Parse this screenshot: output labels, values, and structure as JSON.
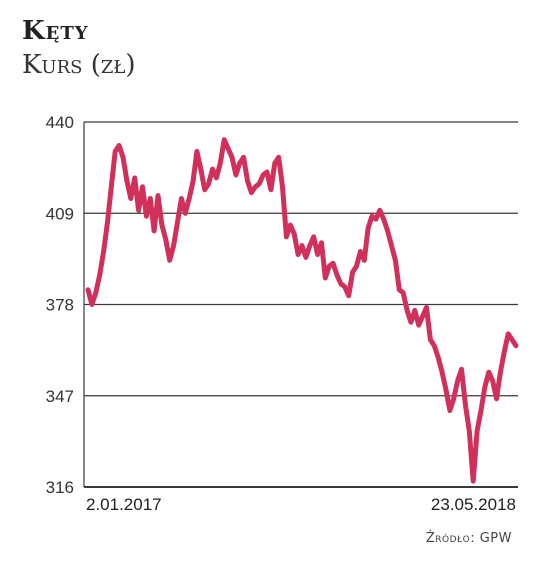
{
  "header": {
    "title": "Kęty",
    "subtitle": "Kurs (zł)"
  },
  "footer": {
    "source": "Źródło: GPW"
  },
  "colors": {
    "line": "#d1305a",
    "grid": "#3a3a3a"
  },
  "chart_data": {
    "type": "line",
    "title": "Kęty",
    "ylabel": "Kurs (zł)",
    "xlabel": "",
    "ylim": [
      316,
      440
    ],
    "yticks": [
      "316",
      "347",
      "378",
      "409",
      "440"
    ],
    "xticks": [
      "2.01.2017",
      "23.05.2018"
    ],
    "grid": "horizontal",
    "series": [
      {
        "values": [
          383,
          378,
          382,
          388,
          396,
          406,
          418,
          430,
          432,
          428,
          420,
          414,
          421,
          410,
          418,
          408,
          414,
          403,
          415,
          405,
          400,
          393,
          398,
          406,
          414,
          409,
          414,
          420,
          430,
          424,
          417,
          419,
          424,
          421,
          426,
          434,
          431,
          428,
          422,
          426,
          428,
          420,
          416,
          418,
          419,
          422,
          423,
          417,
          426,
          428,
          418,
          401,
          405,
          402,
          395,
          398,
          394,
          398,
          401,
          395,
          399,
          387,
          391,
          392,
          388,
          385,
          384,
          381,
          389,
          391,
          396,
          393,
          404,
          408,
          407,
          410,
          407,
          403,
          398,
          393,
          383,
          382,
          376,
          372,
          376,
          371,
          374,
          377,
          366,
          364,
          360,
          355,
          349,
          342,
          346,
          352,
          356,
          344,
          335,
          318,
          335,
          342,
          350,
          355,
          352,
          346,
          355,
          362,
          368,
          366,
          364
        ]
      }
    ]
  }
}
